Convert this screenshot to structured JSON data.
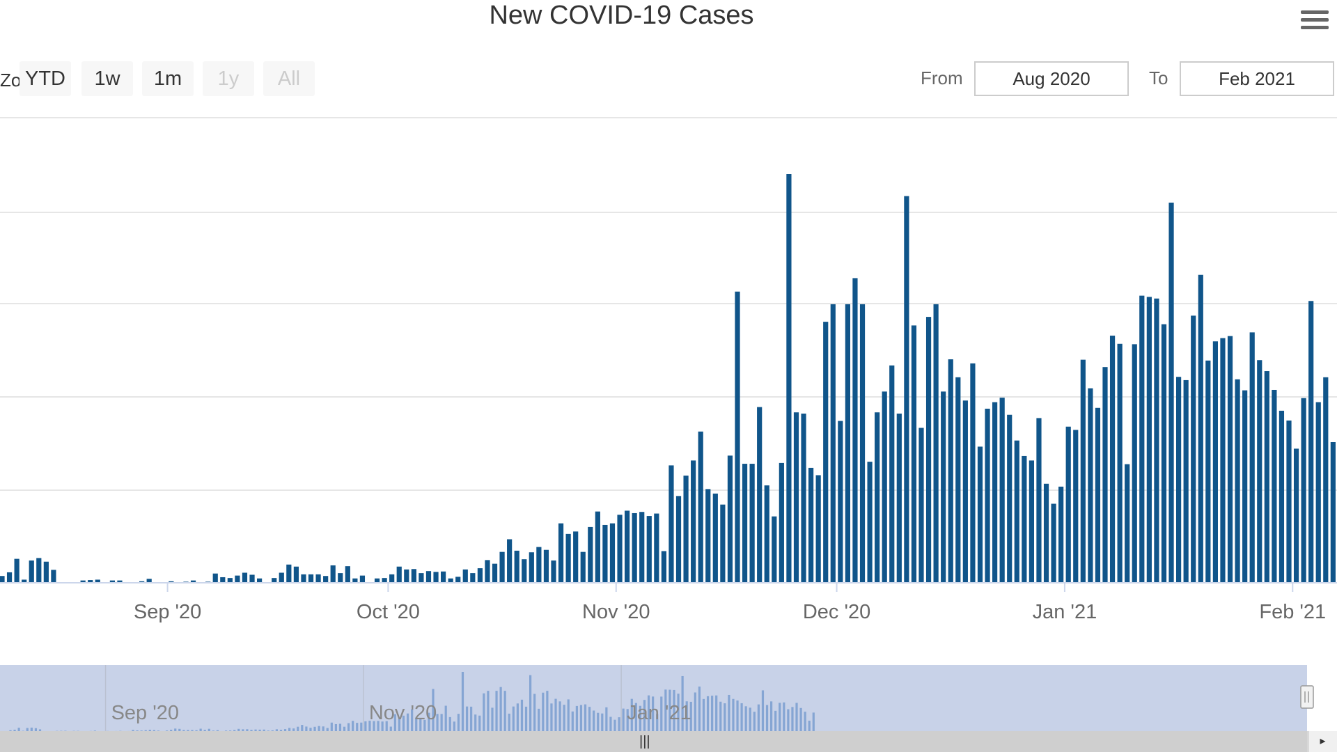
{
  "chart_data": {
    "type": "bar",
    "title": "New COVID-19 Cases",
    "x_tick_labels": [
      {
        "label": "Sep '20",
        "date": "2020-09-01"
      },
      {
        "label": "Oct '20",
        "date": "2020-10-01"
      },
      {
        "label": "Nov '20",
        "date": "2020-11-01"
      },
      {
        "label": "Dec '20",
        "date": "2020-12-01"
      },
      {
        "label": "Jan '21",
        "date": "2021-01-01"
      },
      {
        "label": "Feb '21",
        "date": "2021-02-01"
      }
    ],
    "navigator_tick_labels": [
      {
        "label": "Sep '20",
        "date": "2020-09-01"
      },
      {
        "label": "Nov '20",
        "date": "2020-11-01"
      },
      {
        "label": "Jan '21",
        "date": "2021-01-01"
      }
    ],
    "y_axis_labels_visible": false,
    "ylim": [
      0,
      100
    ],
    "grid": true,
    "legend": "none",
    "bar_color": "#10558a",
    "navigator_bar_color": "#8fb0d8",
    "series": [
      {
        "x_start": "2020-08-09",
        "x_end": "2021-02-07",
        "values": [
          1.5,
          2.4,
          5.7,
          0.6,
          5.3,
          5.9,
          5,
          3,
          0,
          0,
          0,
          0.4,
          0.5,
          0.6,
          0,
          0.4,
          0.4,
          0,
          0,
          0.2,
          0.8,
          0,
          0,
          0.2,
          0,
          0.1,
          0.4,
          0,
          0.1,
          2.1,
          1.2,
          1,
          1.6,
          2.3,
          1.8,
          0.9,
          0,
          1,
          2.3,
          4.3,
          3.8,
          1.9,
          1.9,
          1.9,
          1.5,
          4.1,
          2.2,
          3.9,
          0.9,
          1.6,
          0,
          0.9,
          1,
          1.9,
          3.8,
          3.1,
          3.2,
          2.2,
          2.7,
          2.5,
          2.6,
          0.9,
          1.3,
          3.1,
          2.2,
          3.4,
          5.4,
          4.5,
          7.4,
          10.5,
          7.7,
          5.6,
          7.3,
          8.6,
          7.9,
          5.3,
          14.4,
          11.8,
          12.4,
          7.4,
          13.5,
          17.3,
          14,
          14.4,
          16.5,
          17.5,
          16.9,
          17.2,
          16.2,
          16.8,
          7.6,
          28.6,
          21.1,
          26.1,
          29.8,
          36.9,
          22.8,
          21.7,
          19,
          31,
          71.2,
          29,
          29,
          42.9,
          23.7,
          16.1,
          29.2,
          100,
          41.6,
          41.3,
          28,
          26.2,
          63.8,
          68.1,
          39.5,
          68.1,
          74.5,
          68.1,
          29.5,
          41.6,
          46.7,
          53.1,
          41.3,
          94.6,
          62.9,
          37.8,
          65,
          68.1,
          46.7,
          54.6,
          50.2,
          44.5,
          53.6,
          33.2,
          42.5,
          44.1,
          45.2,
          41,
          34.7,
          30.9,
          29.8,
          40.2,
          24.1,
          19.2,
          23.4,
          38.1,
          37.3,
          54.5,
          47.5,
          42.7,
          52.7,
          60.4,
          58.4,
          28.9,
          58.3,
          70.2,
          69.9,
          69.5,
          63.2,
          93,
          50.3,
          49.5,
          65.3,
          75.3,
          54.3,
          59,
          59.8,
          60.3,
          49.7,
          47,
          61.2,
          54.4,
          51.7,
          47.1,
          42,
          39.6,
          32.7,
          45.1,
          68.9,
          44.1,
          50.2,
          34.3,
          47.8,
          48.5,
          37,
          40.7,
          47.7,
          39.1,
          32.8,
          17.6,
          31.3
        ]
      }
    ],
    "range_selector": {
      "zoom_label": "Zoom",
      "buttons": [
        {
          "label": "YTD",
          "enabled": true
        },
        {
          "label": "1w",
          "enabled": true
        },
        {
          "label": "1m",
          "enabled": true
        },
        {
          "label": "1y",
          "enabled": false
        },
        {
          "label": "All",
          "enabled": false
        }
      ]
    },
    "range_input": {
      "from_label": "From",
      "from_value": "Aug 2020",
      "to_label": "To",
      "to_value": "Feb 2021"
    }
  },
  "scrollbar": {
    "grip_icon": "|||",
    "right_arrow_icon": "▸"
  }
}
